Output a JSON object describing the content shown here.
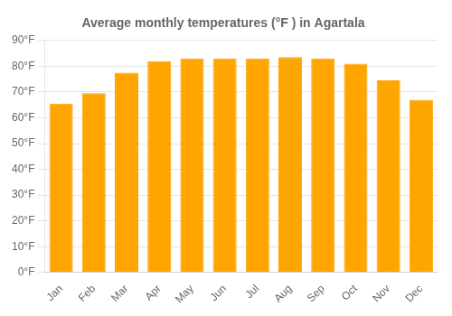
{
  "chart_data": {
    "type": "bar",
    "title": "Average monthly temperatures (°F ) in Agartala",
    "categories": [
      "Jan",
      "Feb",
      "Mar",
      "Apr",
      "May",
      "Jun",
      "Jul",
      "Aug",
      "Sep",
      "Oct",
      "Nov",
      "Dec"
    ],
    "values": [
      65.5,
      69.5,
      77.5,
      82,
      83,
      83,
      83,
      83.5,
      83,
      81,
      74.5,
      67
    ],
    "color": "#FFA500",
    "ylim": [
      0,
      90
    ],
    "yticks": [
      {
        "value": 0,
        "label": "0°F"
      },
      {
        "value": 10,
        "label": "10°F"
      },
      {
        "value": 20,
        "label": "20°F"
      },
      {
        "value": 30,
        "label": "30°F"
      },
      {
        "value": 40,
        "label": "40°F"
      },
      {
        "value": 50,
        "label": "50°F"
      },
      {
        "value": 60,
        "label": "60°F"
      },
      {
        "value": 70,
        "label": "70°F"
      },
      {
        "value": 80,
        "label": "80°F"
      },
      {
        "value": 90,
        "label": "90°F"
      }
    ],
    "grid": true
  }
}
